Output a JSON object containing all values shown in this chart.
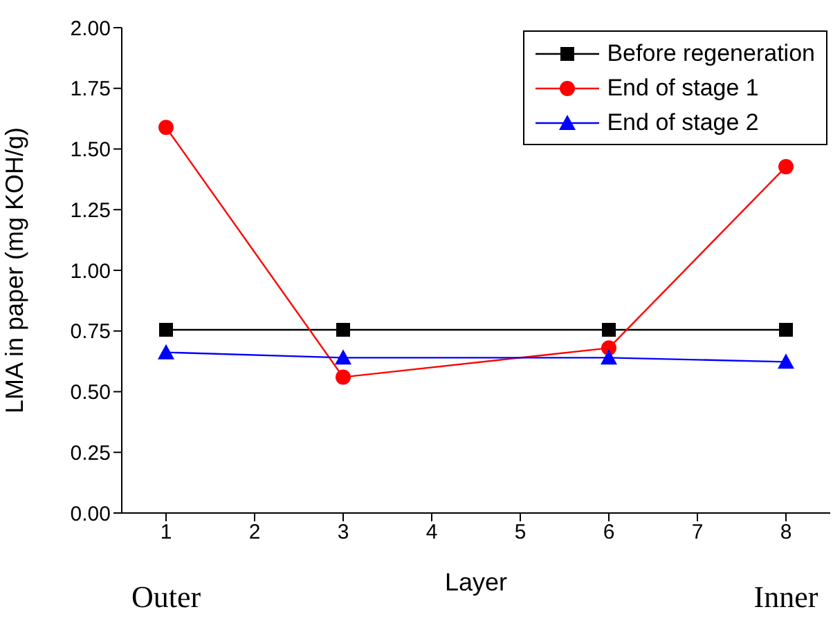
{
  "chart_data": {
    "type": "line",
    "xlabel": "Layer",
    "ylabel": "LMA in paper (mg KOH/g)",
    "x": [
      1,
      3,
      6,
      8
    ],
    "series": [
      {
        "name": "Before regeneration",
        "color": "#000000",
        "marker": "square",
        "values": [
          0.755,
          0.755,
          0.755,
          0.755
        ]
      },
      {
        "name": "End of stage 1",
        "color": "#ff0000",
        "marker": "circle",
        "values": [
          1.589,
          0.56,
          0.68,
          1.427
        ]
      },
      {
        "name": "End of stage 2",
        "color": "#0000ff",
        "marker": "triangle",
        "values": [
          0.662,
          0.64,
          0.64,
          0.623
        ]
      }
    ],
    "xlim": [
      0.5,
      8.5
    ],
    "xticks": [
      1,
      2,
      3,
      4,
      5,
      6,
      7,
      8
    ],
    "ylim": [
      0,
      2
    ],
    "yticks": [
      {
        "value": 0,
        "label": "0.00"
      },
      {
        "value": 0.25,
        "label": "0.25"
      },
      {
        "value": 0.5,
        "label": "0.50"
      },
      {
        "value": 0.75,
        "label": "0.75"
      },
      {
        "value": 1,
        "label": "1.00"
      },
      {
        "value": 1.25,
        "label": "1.25"
      },
      {
        "value": 1.5,
        "label": "1.50"
      },
      {
        "value": 1.75,
        "label": "1.75"
      },
      {
        "value": 2,
        "label": "2.00"
      }
    ],
    "annotations": [
      "Outer",
      "Inner"
    ],
    "grid": false,
    "legend": "top right",
    "line_style": "solid"
  }
}
